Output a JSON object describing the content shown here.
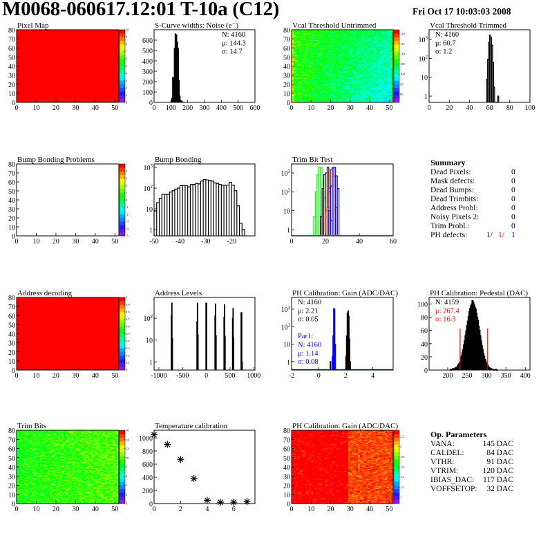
{
  "header": {
    "title": "M0068-060617.12:01 T-10a (C12)",
    "date": "Fri Oct 17 10:03:03 2008"
  },
  "colors": {
    "frame": "#000000",
    "red": "#ff0000",
    "blue": "#0000ff",
    "green": "#00ff00"
  },
  "summary": {
    "title": "Summary",
    "rows": [
      {
        "label": "Dead Pixels:",
        "value": "0"
      },
      {
        "label": "Mask defects:",
        "value": "0"
      },
      {
        "label": "Dead Bumps:",
        "value": "0"
      },
      {
        "label": "Dead Trimbits:",
        "value": "0"
      },
      {
        "label": "Address Probl:",
        "value": "0"
      },
      {
        "label": "Noisy Pixels 2:",
        "value": "0"
      },
      {
        "label": "Trim Probl.:",
        "value": "0"
      }
    ],
    "ph_defects": {
      "label": "PH defects:",
      "v1": "1/",
      "v2": "1/",
      "v3": "1"
    }
  },
  "op_parameters": {
    "title": "Op. Parameters",
    "rows": [
      {
        "label": "VANA:",
        "value": "145 DAC"
      },
      {
        "label": "CALDEL:",
        "value": "84 DAC"
      },
      {
        "label": "VTHR:",
        "value": "91 DAC"
      },
      {
        "label": "VTRIM:",
        "value": "120 DAC"
      },
      {
        "label": "IBIAS_DAC:",
        "value": "117 DAC"
      },
      {
        "label": "VOFFSETOP:",
        "value": "32 DAC"
      }
    ]
  },
  "chart_data": [
    {
      "id": "pixel-map",
      "type": "heatmap",
      "title": "Pixel Map",
      "xlim": [
        0,
        52
      ],
      "ylim": [
        0,
        80
      ],
      "xticks": [
        0,
        10,
        20,
        30,
        40,
        50
      ],
      "yticks": [
        0,
        10,
        20,
        30,
        40,
        50,
        60,
        70,
        80
      ],
      "zlim": [
        0,
        10
      ],
      "zticks": [
        0,
        1,
        2,
        3,
        4,
        5,
        6,
        7,
        8,
        9,
        10
      ],
      "fill": "uniform",
      "z_value": 10
    },
    {
      "id": "scurve-noise",
      "type": "bar",
      "title": "S-Curve widths: Noise (e⁻)",
      "xlim": [
        0,
        600
      ],
      "ylim": [
        0,
        700
      ],
      "xticks": [
        0,
        100,
        200,
        300,
        400,
        500,
        600
      ],
      "yticks": [
        0,
        100,
        200,
        300,
        400,
        500,
        600
      ],
      "bin_low": 100,
      "bin_width": 5,
      "series": [
        {
          "color": "#000000",
          "values": [
            10,
            40,
            240,
            240,
            520,
            660,
            650,
            580,
            520,
            210,
            60,
            20,
            12,
            5,
            2
          ]
        }
      ],
      "stats": {
        "pos": "right",
        "lines": [
          {
            "text": "N: 4160",
            "color": "#000000"
          },
          {
            "text": "μ: 144.3",
            "color": "#000000"
          },
          {
            "text": "σ: 14.7",
            "color": "#000000"
          }
        ]
      }
    },
    {
      "id": "vcal-untrimmed",
      "type": "heatmap",
      "title": "Vcal Threshold Untrimmed",
      "xlim": [
        0,
        52
      ],
      "ylim": [
        0,
        80
      ],
      "xticks": [
        0,
        10,
        20,
        30,
        40,
        50
      ],
      "yticks": [
        0,
        10,
        20,
        30,
        40,
        50,
        60,
        70,
        80
      ],
      "zlim": [
        86,
        122
      ],
      "zticks": [
        90,
        95,
        100,
        105,
        110,
        115,
        120
      ],
      "fill": "noisy",
      "z_mean_left": 107,
      "z_mean_right": 100,
      "z_noise": 4
    },
    {
      "id": "vcal-trimmed",
      "type": "bar",
      "title": "Vcal Threshold Trimmed",
      "xlim": [
        0,
        100
      ],
      "ylim": [
        0.47,
        3250
      ],
      "log_y": true,
      "xticks": [
        0,
        20,
        40,
        60,
        80,
        100
      ],
      "yticks": [
        1,
        10,
        100,
        1000
      ],
      "bin_low": 57,
      "bin_width": 1,
      "series": [
        {
          "color": "#000000",
          "values": [
            8,
            90,
            700,
            1700,
            1300,
            500,
            60,
            3,
            0,
            0,
            0,
            1
          ]
        }
      ],
      "stats": {
        "pos": "left",
        "lines": [
          {
            "text": "N: 4160",
            "color": "#000000"
          },
          {
            "text": "μ: 60.7",
            "color": "#000000"
          },
          {
            "text": "σ:  1.2",
            "color": "#000000"
          }
        ]
      }
    },
    {
      "id": "bump-bonding-problems",
      "type": "heatmap",
      "title": "Bump Bonding Problems",
      "xlim": [
        0,
        52
      ],
      "ylim": [
        0,
        80
      ],
      "xticks": [
        0,
        10,
        20,
        30,
        40,
        50
      ],
      "yticks": [
        0,
        10,
        20,
        30,
        40,
        50,
        60,
        70,
        80
      ],
      "zlim": [
        -5,
        5
      ],
      "zticks": [
        -5,
        -4,
        -3,
        -2,
        -1,
        0,
        1,
        2,
        3,
        4,
        5
      ],
      "fill": "empty"
    },
    {
      "id": "bump-bonding",
      "type": "bar",
      "title": "Bump Bonding",
      "xlim": [
        -50,
        -11
      ],
      "ylim": [
        0.5,
        1470
      ],
      "log_y": true,
      "xticks": [
        -50,
        -40,
        -30,
        -20
      ],
      "yticks": [
        1,
        10,
        100,
        1000
      ],
      "bin_low": -50,
      "bin_width": 1,
      "series": [
        {
          "color": "#000000",
          "values": [
            8,
            20,
            32,
            50,
            50,
            50,
            65,
            75,
            90,
            100,
            130,
            135,
            130,
            115,
            150,
            150,
            170,
            160,
            220,
            260,
            250,
            240,
            220,
            180,
            170,
            150,
            140,
            140,
            140,
            190,
            140,
            75,
            14,
            2,
            1
          ]
        }
      ]
    },
    {
      "id": "trim-bit-test",
      "type": "bar",
      "title": "Trim Bit Test",
      "xlim": [
        0,
        60
      ],
      "ylim": [
        0.47,
        3000
      ],
      "log_y": true,
      "xticks": [
        0,
        20,
        40,
        60
      ],
      "yticks": [
        1,
        10,
        100,
        1000
      ],
      "bin_width": 1,
      "series": [
        {
          "color": "#00ff00",
          "bin_low": 13,
          "values": [
            5,
            100,
            800,
            2000,
            2000,
            300,
            50
          ]
        },
        {
          "color": "#000000",
          "bin_low": 17,
          "values": [
            5,
            150,
            800,
            1000,
            2000,
            100,
            3
          ]
        },
        {
          "color": "#ff0000",
          "bin_low": 20,
          "values": [
            10,
            15,
            150,
            1500,
            2000,
            700,
            15
          ]
        },
        {
          "color": "#0000ff",
          "bin_low": 22,
          "values": [
            10,
            200,
            1800,
            2000,
            700,
            150
          ]
        }
      ],
      "baseline_color": "#00ff00"
    },
    {
      "id": "address-decoding",
      "type": "heatmap",
      "title": "Address decoding",
      "xlim": [
        0,
        52
      ],
      "ylim": [
        0,
        80
      ],
      "xticks": [
        0,
        10,
        20,
        30,
        40,
        50
      ],
      "yticks": [
        0,
        10,
        20,
        30,
        40,
        50,
        60,
        70,
        80
      ],
      "zlim": [
        0,
        1
      ],
      "zticks": [
        0,
        0.1,
        0.2,
        0.3,
        0.4,
        0.5,
        0.6,
        0.7,
        0.8,
        0.9,
        1
      ],
      "fill": "uniform",
      "z_value": 1
    },
    {
      "id": "address-levels",
      "type": "bar",
      "title": "Address Levels",
      "xlim": [
        -1100,
        1025
      ],
      "ylim": [
        0.42,
        900
      ],
      "log_y": true,
      "xticks": [
        -1000,
        -500,
        0,
        500,
        1000
      ],
      "yticks": [
        1,
        10,
        100
      ],
      "bin_width": 10,
      "series": [
        {
          "color": "#000000",
          "bars": [
            [
              -735,
              130
            ],
            [
              -725,
              500
            ],
            [
              -715,
              12
            ],
            [
              -195,
              70
            ],
            [
              -185,
              500
            ],
            [
              -175,
              17
            ],
            [
              -5,
              500
            ],
            [
              5,
              500
            ],
            [
              185,
              130
            ],
            [
              195,
              450
            ],
            [
              205,
              16
            ],
            [
              375,
              110
            ],
            [
              385,
              420
            ],
            [
              395,
              15
            ],
            [
              555,
              100
            ],
            [
              565,
              280
            ],
            [
              575,
              13
            ],
            [
              735,
              180
            ],
            [
              745,
              180
            ],
            [
              755,
              1
            ]
          ]
        }
      ]
    },
    {
      "id": "ph-calibration-gain",
      "type": "bar",
      "title": "PH Calibration: Gain (ADC/DAC)",
      "xlim": [
        -2,
        5.5
      ],
      "ylim": [
        0.33,
        4700
      ],
      "log_y": true,
      "xticks": [
        -2,
        0,
        2,
        4
      ],
      "yticks": [
        1,
        10,
        100,
        1000
      ],
      "bin_width": 0.05,
      "series": [
        {
          "color": "#000000",
          "bin_low": 0.85,
          "values": [
            1
          ]
        },
        {
          "color": "#0000ff",
          "bin_low": 1.0,
          "values": [
            2,
            30,
            1100,
            1000,
            10
          ]
        },
        {
          "color": "#000000",
          "bin_low": 2.0,
          "values": [
            2,
            30,
            600,
            800,
            400,
            20,
            1
          ]
        }
      ],
      "baseline_color": "#0000ff",
      "stats": {
        "pos": "left",
        "lines": [
          {
            "text": "N: 4160",
            "color": "#000000"
          },
          {
            "text": "μ: 2.21",
            "color": "#000000"
          },
          {
            "text": "σ: 0.05",
            "color": "#000000"
          },
          {
            "text": "",
            "color": "#000000"
          },
          {
            "text": "Par1:",
            "color": "#0000ff"
          },
          {
            "text": "N: 4160",
            "color": "#0000ff"
          },
          {
            "text": "μ: 1.14",
            "color": "#0000ff"
          },
          {
            "text": "σ: 0.08",
            "color": "#0000ff"
          }
        ]
      }
    },
    {
      "id": "ph-calibration-pedestal",
      "type": "bar",
      "title": "PH Calibration: Pedestal (DAC)",
      "xlim": [
        152,
        412
      ],
      "ylim": [
        0,
        110
      ],
      "xticks": [
        200,
        250,
        300,
        350,
        400
      ],
      "yticks": [
        0,
        20,
        40,
        60,
        80,
        100
      ],
      "bin_low": 205,
      "bin_width": 2,
      "series": [
        {
          "color": "#000000",
          "values": [
            0,
            1,
            0,
            1,
            2,
            1,
            2,
            3,
            4,
            3,
            6,
            8,
            10,
            12,
            17,
            21,
            26,
            31,
            38,
            44,
            52,
            59,
            67,
            74,
            81,
            88,
            93,
            97,
            100,
            105,
            102,
            99,
            95,
            92,
            86,
            80,
            75,
            66,
            60,
            52,
            44,
            37,
            31,
            25,
            21,
            16,
            13,
            10,
            8,
            6,
            4,
            3,
            2,
            2,
            1,
            1,
            0,
            0,
            0,
            1,
            0,
            0
          ]
        }
      ],
      "fit_range": [
        232,
        303
      ],
      "fit_color": "#ff0000",
      "stats": {
        "pos": "left",
        "lines": [
          {
            "text": "N: 4159",
            "color": "#000000"
          },
          {
            "text": "μ: 267.4",
            "color": "#ff0000"
          },
          {
            "text": "σ: 16.3",
            "color": "#ff0000"
          }
        ]
      }
    },
    {
      "id": "trim-bits",
      "type": "heatmap",
      "title": "Trim Bits",
      "xlim": [
        0,
        52
      ],
      "ylim": [
        0,
        80
      ],
      "xticks": [
        0,
        10,
        20,
        30,
        40,
        50
      ],
      "yticks": [
        0,
        10,
        20,
        30,
        40,
        50,
        60,
        70,
        80
      ],
      "zlim": [
        0,
        16
      ],
      "zticks": [
        0,
        2,
        4,
        6,
        8,
        10,
        12,
        14,
        16
      ],
      "fill": "noisy",
      "z_mean_left": 9,
      "z_mean_right": 10,
      "z_noise": 1.8
    },
    {
      "id": "temperature-calibration",
      "type": "scatter",
      "title": "Temperature calibration",
      "xlim": [
        0,
        7.6
      ],
      "ylim": [
        0,
        1116
      ],
      "xticks": [
        0,
        2,
        4,
        6
      ],
      "yticks": [
        0,
        200,
        400,
        600,
        800,
        1000
      ],
      "points": [
        [
          0,
          1050
        ],
        [
          1,
          900
        ],
        [
          2,
          670
        ],
        [
          3,
          380
        ],
        [
          4,
          50
        ],
        [
          5,
          20
        ],
        [
          6,
          20
        ],
        [
          7,
          30
        ]
      ]
    },
    {
      "id": "ph-calibration-gain-map",
      "type": "heatmap",
      "title": "PH Calibration: Gain (ADC/DAC)",
      "xlim": [
        0,
        52
      ],
      "ylim": [
        0,
        80
      ],
      "xticks": [
        0,
        10,
        20,
        30,
        40,
        50
      ],
      "yticks": [
        0,
        10,
        20,
        30,
        40,
        50,
        60,
        70,
        80
      ],
      "zlim": [
        0.88,
        2.32
      ],
      "zticks": [
        1,
        1.2,
        1.4,
        1.6,
        1.8,
        2,
        2.2
      ],
      "fill": "gain",
      "z_mean_left": 2.35,
      "z_mean_right": 2.2,
      "z_noise": 0.08
    }
  ]
}
